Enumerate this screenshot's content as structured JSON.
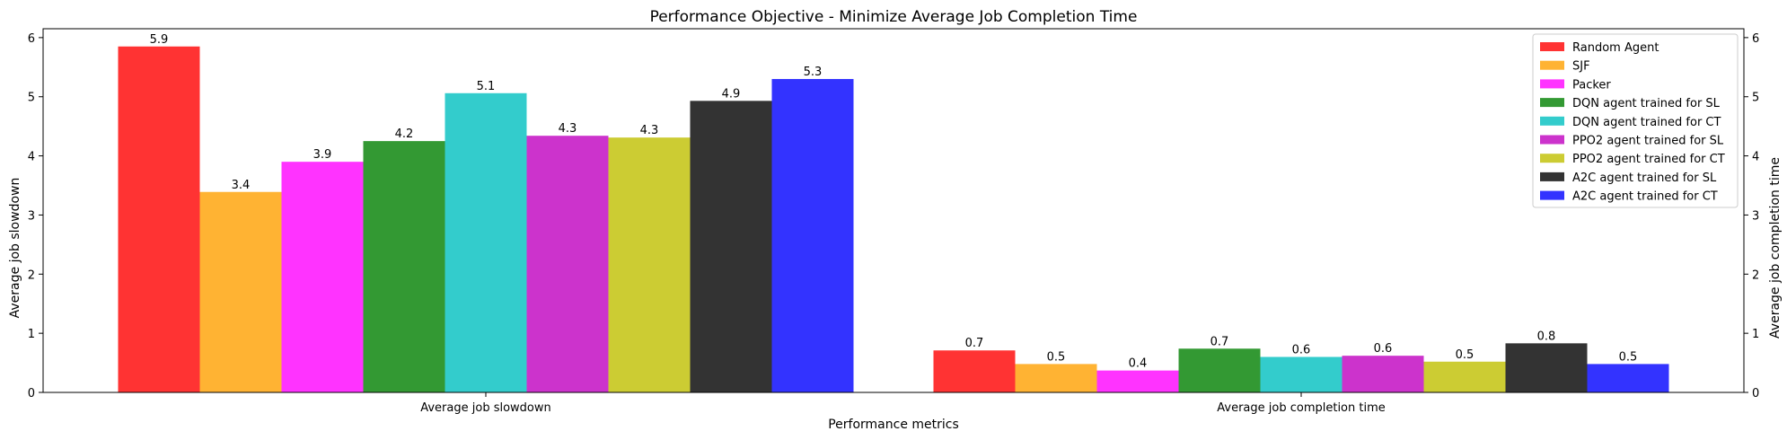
{
  "chart_data": {
    "type": "bar",
    "title": "Performance Objective - Minimize Average Job Completion Time",
    "xlabel": "Performance metrics",
    "ylabel": "Average job slowdown",
    "ylabel_right": "Average job completion time",
    "categories": [
      "Average job slowdown",
      "Average job completion time"
    ],
    "ylim": [
      0,
      6.15
    ],
    "yticks": [
      0,
      1,
      2,
      3,
      4,
      5,
      6
    ],
    "legend_position": "top-right",
    "grid": false,
    "series": [
      {
        "name": "Random Agent",
        "color": "#ff3333",
        "values": [
          5.85,
          0.71
        ],
        "labels": [
          "5.9",
          "0.7"
        ]
      },
      {
        "name": "SJF",
        "color": "#ffb333",
        "values": [
          3.39,
          0.48
        ],
        "labels": [
          "3.4",
          "0.5"
        ]
      },
      {
        "name": "Packer",
        "color": "#ff33ff",
        "values": [
          3.9,
          0.37
        ],
        "labels": [
          "3.9",
          "0.4"
        ]
      },
      {
        "name": "DQN agent trained for SL",
        "color": "#339933",
        "values": [
          4.25,
          0.74
        ],
        "labels": [
          "4.2",
          "0.7"
        ]
      },
      {
        "name": "DQN agent trained for CT",
        "color": "#33cccc",
        "values": [
          5.06,
          0.6
        ],
        "labels": [
          "5.1",
          "0.6"
        ]
      },
      {
        "name": "PPO2 agent trained for SL",
        "color": "#cc33cc",
        "values": [
          4.34,
          0.62
        ],
        "labels": [
          "4.3",
          "0.6"
        ]
      },
      {
        "name": "PPO2 agent trained for CT",
        "color": "#cccc33",
        "values": [
          4.31,
          0.52
        ],
        "labels": [
          "4.3",
          "0.5"
        ]
      },
      {
        "name": "A2C agent trained for SL",
        "color": "#333333",
        "values": [
          4.93,
          0.83
        ],
        "labels": [
          "4.9",
          "0.8"
        ]
      },
      {
        "name": "A2C agent trained for CT",
        "color": "#3333ff",
        "values": [
          5.3,
          0.48
        ],
        "labels": [
          "5.3",
          "0.5"
        ]
      }
    ]
  }
}
